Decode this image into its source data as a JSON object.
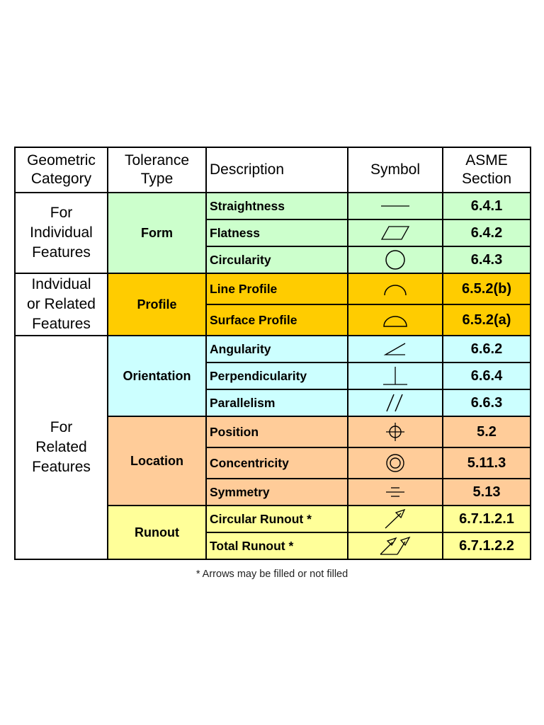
{
  "headers": {
    "category": [
      "Geometric",
      "Category"
    ],
    "tolerance_type": [
      "Tolerance",
      "Type"
    ],
    "description": "Description",
    "symbol": "Symbol",
    "section": [
      "ASME",
      "Section"
    ]
  },
  "categories": {
    "individual": [
      "For",
      "Individual",
      "Features"
    ],
    "individual_or_related": [
      "Indvidual",
      "or Related",
      "Features"
    ],
    "related": [
      "For",
      "Related",
      "Features"
    ]
  },
  "types": {
    "form": "Form",
    "profile": "Profile",
    "orientation": "Orientation",
    "location": "Location",
    "runout": "Runout"
  },
  "colors": {
    "form": "#ccffcc",
    "profile": "#ffcc00",
    "orientation": "#ccffff",
    "location": "#ffcc99",
    "runout": "#ffff99"
  },
  "rows": [
    {
      "description": "Straightness",
      "symbol": "straightness-icon",
      "section": "6.4.1"
    },
    {
      "description": "Flatness",
      "symbol": "flatness-icon",
      "section": "6.4.2"
    },
    {
      "description": "Circularity",
      "symbol": "circularity-icon",
      "section": "6.4.3"
    },
    {
      "description": "Line Profile",
      "symbol": "line-profile-icon",
      "section": "6.5.2(b)"
    },
    {
      "description": "Surface Profile",
      "symbol": "surface-profile-icon",
      "section": "6.5.2(a)"
    },
    {
      "description": "Angularity",
      "symbol": "angularity-icon",
      "section": "6.6.2"
    },
    {
      "description": "Perpendicularity",
      "symbol": "perpendicularity-icon",
      "section": "6.6.4"
    },
    {
      "description": "Parallelism",
      "symbol": "parallelism-icon",
      "section": "6.6.3"
    },
    {
      "description": "Position",
      "symbol": "position-icon",
      "section": "5.2"
    },
    {
      "description": "Concentricity",
      "symbol": "concentricity-icon",
      "section": "5.11.3"
    },
    {
      "description": "Symmetry",
      "symbol": "symmetry-icon",
      "section": "5.13"
    },
    {
      "description": "Circular Runout *",
      "symbol": "circular-runout-icon",
      "section": "6.7.1.2.1"
    },
    {
      "description": "Total Runout *",
      "symbol": "total-runout-icon",
      "section": "6.7.1.2.2"
    }
  ],
  "footnote": "* Arrows may be filled or not filled"
}
